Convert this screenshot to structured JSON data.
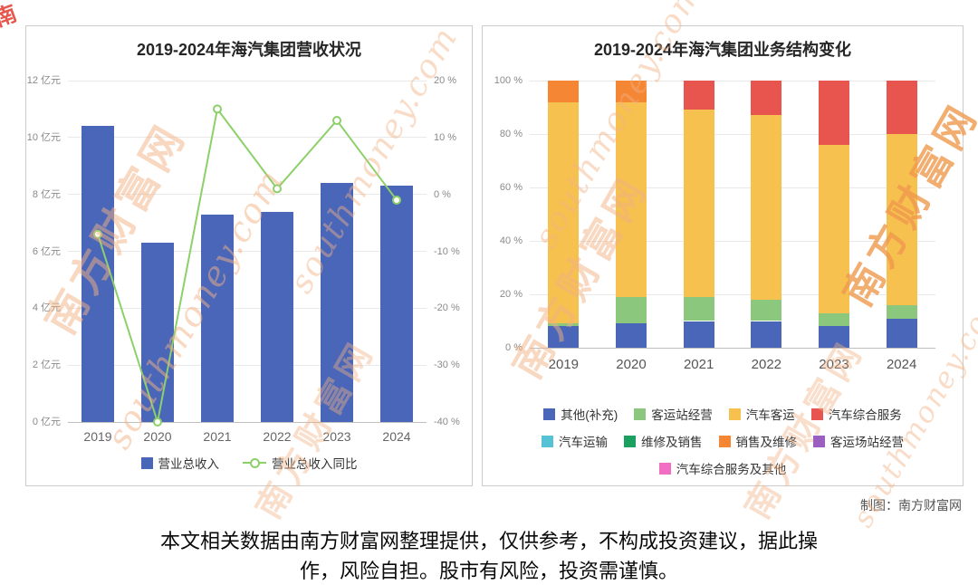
{
  "watermark": {
    "cn": "南方财富网",
    "en": "southmoney.com",
    "corner": "南"
  },
  "credit": "制图：南方财富网",
  "disclaimer": {
    "line1": "本文相关数据由南方财富网整理提供，仅供参考，不构成投资建议，据此操",
    "line2": "作，风险自担。股市有风险，投资需谨慎。"
  },
  "colors": {
    "bar_blue": "#4a66b8",
    "line_green": "#8cd06a",
    "stack_green": "#8bc87e",
    "stack_yellow": "#f6c14e",
    "stack_red": "#e8544e",
    "stack_orange": "#f58634",
    "cyan": "#56c2d6",
    "dark_green": "#1aa15f",
    "purple": "#9a5fc0",
    "pink": "#f26ec4"
  },
  "chart_data": [
    {
      "type": "bar",
      "title": "2019-2024年海汽集团营收状况",
      "categories": [
        "2019",
        "2020",
        "2021",
        "2022",
        "2023",
        "2024"
      ],
      "left_axis": {
        "min": 0,
        "max": 12,
        "step": 2,
        "suffix": " 亿元"
      },
      "right_axis": {
        "min": -40,
        "max": 20,
        "step": 10,
        "suffix": " %"
      },
      "grid": true,
      "legend_position": "bottom",
      "series": [
        {
          "name": "营业总收入",
          "type": "bar",
          "axis": "left",
          "unit": "亿元",
          "color": "#4a66b8",
          "values": [
            10.4,
            6.3,
            7.3,
            7.4,
            8.4,
            8.3
          ]
        },
        {
          "name": "营业总收入同比",
          "type": "line",
          "axis": "right",
          "unit": "%",
          "color": "#8cd06a",
          "values": [
            -7,
            -40,
            15,
            1,
            13,
            -1
          ]
        }
      ]
    },
    {
      "type": "bar",
      "subtype": "stacked-percent",
      "title": "2019-2024年海汽集团业务结构变化",
      "categories": [
        "2019",
        "2020",
        "2021",
        "2022",
        "2023",
        "2024"
      ],
      "y_axis": {
        "min": 0,
        "max": 100,
        "step": 20,
        "suffix": " %"
      },
      "grid": true,
      "legend_position": "bottom",
      "series": [
        {
          "name": "其他(补充)",
          "color": "#4a66b8",
          "values": [
            8,
            9,
            10,
            10,
            8,
            11
          ]
        },
        {
          "name": "客运站经营",
          "color": "#8bc87e",
          "values": [
            1,
            10,
            9,
            8,
            5,
            5
          ]
        },
        {
          "name": "汽车客运",
          "color": "#f6c14e",
          "values": [
            83,
            73,
            70,
            69,
            63,
            64
          ]
        },
        {
          "name": "销售及维修",
          "color": "#f58634",
          "values": [
            8,
            8,
            0,
            0,
            0,
            0
          ]
        },
        {
          "name": "汽车综合服务",
          "color": "#e8544e",
          "values": [
            0,
            0,
            11,
            13,
            24,
            20
          ]
        }
      ],
      "legend": [
        {
          "label": "其他(补充)",
          "color": "#4a66b8"
        },
        {
          "label": "客运站经营",
          "color": "#8bc87e"
        },
        {
          "label": "汽车客运",
          "color": "#f6c14e"
        },
        {
          "label": "汽车综合服务",
          "color": "#e8544e"
        },
        {
          "label": "汽车运输",
          "color": "#56c2d6"
        },
        {
          "label": "维修及销售",
          "color": "#1aa15f"
        },
        {
          "label": "销售及维修",
          "color": "#f58634"
        },
        {
          "label": "客运场站经营",
          "color": "#9a5fc0"
        },
        {
          "label": "汽车综合服务及其他",
          "color": "#f26ec4"
        }
      ]
    }
  ]
}
